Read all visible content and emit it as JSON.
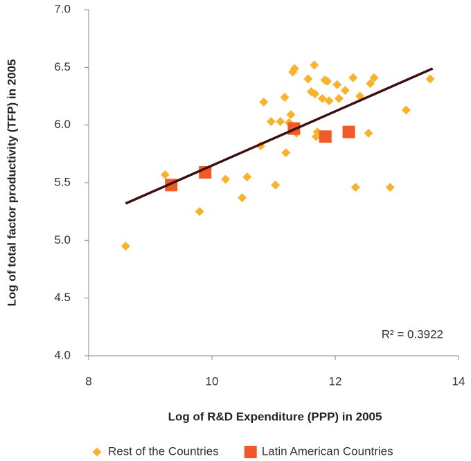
{
  "chart_data": {
    "type": "scatter",
    "xlabel": "Log of R&D Expenditure (PPP) in 2005",
    "ylabel": "Log of total factor productivity (TFP) in 2005",
    "xlim": [
      8,
      14
    ],
    "xticks": [
      8,
      10,
      12,
      14
    ],
    "ylim": [
      4,
      7
    ],
    "yticks": [
      {
        "value": 4,
        "label": "4.0"
      },
      4.5,
      {
        "value": 5,
        "label": "5.0"
      },
      5.5,
      {
        "value": 6,
        "label": "6.0"
      },
      6.5,
      {
        "value": 7,
        "label": "7.0"
      }
    ],
    "series": [
      {
        "name": "Rest of the Countries",
        "color": "#f7b32b",
        "marker": "diamond",
        "x": [
          8.6,
          9.24,
          9.8,
          10.22,
          10.49,
          10.57,
          10.79,
          10.84,
          10.96,
          11.03,
          11.11,
          11.18,
          11.2,
          11.25,
          11.28,
          11.31,
          11.34,
          11.37,
          11.56,
          11.61,
          11.67,
          11.66,
          11.69,
          11.71,
          11.79,
          11.83,
          11.87,
          11.9,
          12.03,
          12.06,
          12.16,
          12.29,
          12.33,
          12.4,
          12.54,
          12.57,
          12.63,
          12.89,
          13.15,
          13.54
        ],
        "y": [
          4.95,
          5.57,
          5.25,
          5.53,
          5.37,
          5.55,
          5.82,
          6.2,
          6.03,
          5.48,
          6.03,
          6.24,
          5.76,
          6.02,
          6.09,
          6.46,
          6.49,
          5.93,
          6.4,
          6.29,
          6.27,
          6.52,
          5.9,
          5.94,
          6.23,
          6.39,
          6.38,
          6.21,
          6.35,
          6.23,
          6.3,
          6.41,
          5.46,
          6.25,
          5.93,
          6.36,
          6.41,
          5.46,
          6.13,
          6.4
        ]
      },
      {
        "name": "Latin American Countries",
        "color": "#ef5a28",
        "marker": "square",
        "x": [
          9.34,
          9.89,
          11.33,
          11.84,
          12.22
        ],
        "y": [
          5.48,
          5.59,
          5.97,
          5.9,
          5.94
        ]
      }
    ],
    "trendline": {
      "color": "#3a1010",
      "x": [
        8.6,
        13.58
      ],
      "y": [
        5.32,
        6.49
      ]
    },
    "annotation": "R² = 0.3922",
    "legend": "bottom"
  }
}
